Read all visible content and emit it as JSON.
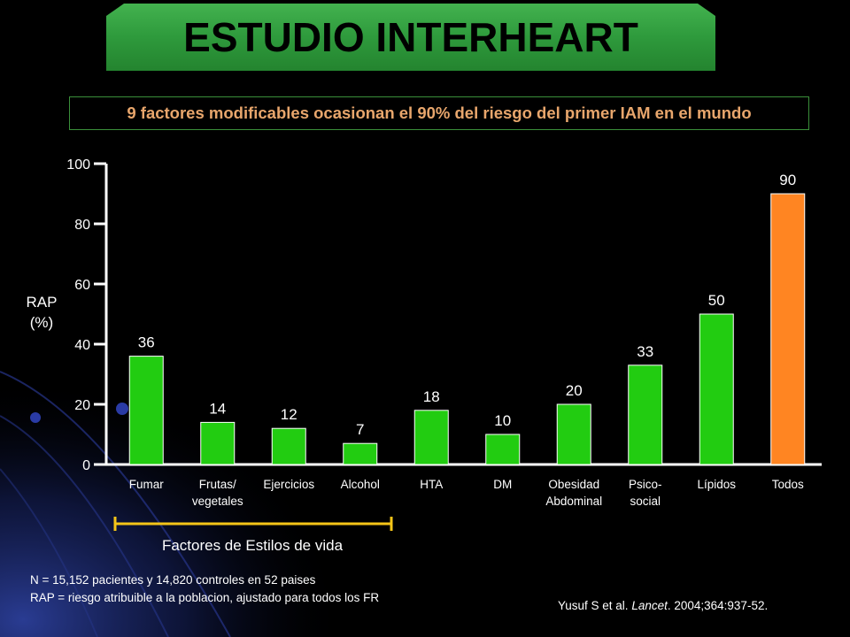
{
  "title": "ESTUDIO INTERHEART",
  "subtitle": "9 factores modificables ocasionan el 90% del riesgo del primer IAM en el mundo",
  "colors": {
    "bar": "#22cc11",
    "bar_highlight": "#ff8522",
    "banner": "#2e9a3c",
    "subtitle_text": "#e8a66c",
    "bracket": "#f5c518",
    "background": "#000000",
    "decor_blue": "#1a2a6e"
  },
  "chart_data": {
    "type": "bar",
    "categories": [
      "Fumar",
      "Frutas/\nvegetales",
      "Ejercicios",
      "Alcohol",
      "HTA",
      "DM",
      "Obesidad\nAbdominal",
      "Psico-\nsocial",
      "Lípidos",
      "Todos"
    ],
    "values": [
      36,
      14,
      12,
      7,
      18,
      10,
      20,
      33,
      50,
      90
    ],
    "data_labels": [
      "36",
      "14",
      "12",
      "7",
      "18",
      "10",
      "20",
      "33",
      "50",
      "90"
    ],
    "highlight_index": 9,
    "ylabel": "RAP\n(%)",
    "ylim": [
      0,
      100
    ],
    "yticks": [
      0,
      20,
      40,
      60,
      80,
      100
    ],
    "grid": false
  },
  "bracket": {
    "label": "Factores de Estilos de vida",
    "covers": [
      "Fumar",
      "Frutas/\nvegetales",
      "Ejercicios",
      "Alcohol"
    ]
  },
  "notes": [
    "N = 15,152 pacientes y 14,820 controles en 52 paises",
    "RAP = riesgo atribuible a la poblacion, ajustado para todos los FR"
  ],
  "citation": {
    "authors": "Yusuf S et al. ",
    "journal": "Lancet",
    "details": ". 2004;364:937-52."
  }
}
